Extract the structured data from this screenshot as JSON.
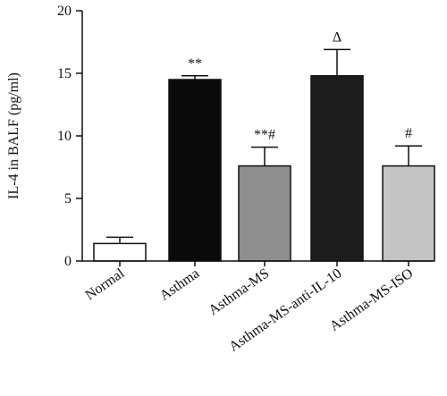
{
  "chart_data": {
    "type": "bar",
    "title": "",
    "xlabel": "",
    "ylabel": "IL-4 in BALF (pg/ml)",
    "ylim": [
      0,
      20
    ],
    "yticks": [
      0,
      5,
      10,
      15,
      20
    ],
    "grid": false,
    "categories": [
      "Normal",
      "Asthma",
      "Asthma-MS",
      "Asthma-MS-anti-IL-10",
      "Asthma-MS-ISO"
    ],
    "values": [
      1.4,
      14.5,
      7.6,
      14.8,
      7.6
    ],
    "errors": [
      0.5,
      0.3,
      1.5,
      2.1,
      1.6
    ],
    "annotations": [
      "",
      "**",
      "**#",
      "Δ",
      "#"
    ],
    "colors": [
      "#ffffff",
      "#0a0a0a",
      "#8f8f8f",
      "#1c1c1c",
      "#c4c4c4"
    ]
  }
}
